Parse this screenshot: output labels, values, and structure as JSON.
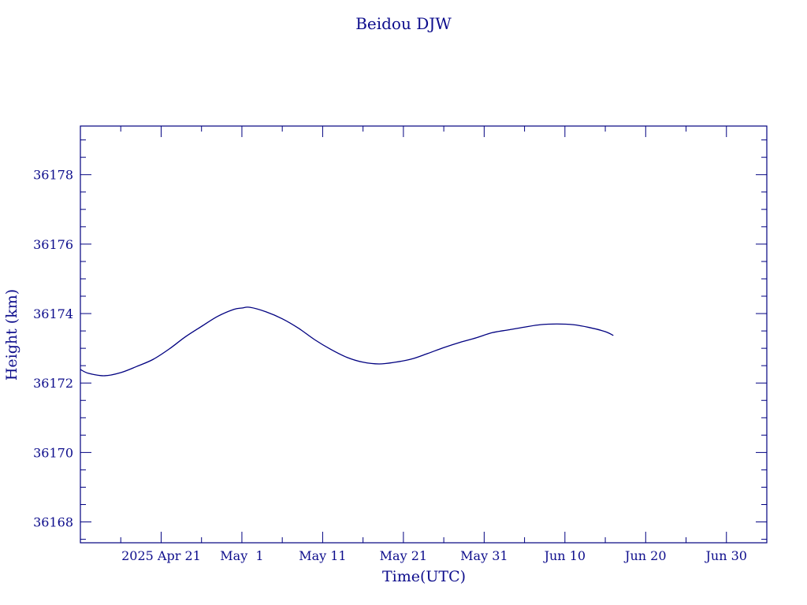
{
  "chart_data": {
    "type": "line",
    "title": "Beidou DJW",
    "xlabel": "Time(UTC)",
    "ylabel": "Height (km)",
    "colors": {
      "axis": "#000080",
      "text": "#0d0d8c",
      "line": "#000080"
    },
    "grid": false,
    "legend": "none",
    "x_range": [
      "2025-04-11",
      "2025-07-05"
    ],
    "y_range": [
      36167.4,
      36179.4
    ],
    "x_major_ticks": [
      {
        "date": "2025-04-21",
        "label": "2025 Apr 21"
      },
      {
        "date": "2025-05-01",
        "label": "May  1"
      },
      {
        "date": "2025-05-11",
        "label": "May 11"
      },
      {
        "date": "2025-05-21",
        "label": "May 21"
      },
      {
        "date": "2025-05-31",
        "label": "May 31"
      },
      {
        "date": "2025-06-10",
        "label": "Jun 10"
      },
      {
        "date": "2025-06-20",
        "label": "Jun 20"
      },
      {
        "date": "2025-06-30",
        "label": "Jun 30"
      }
    ],
    "y_major_ticks": [
      {
        "value": 36168,
        "label": "36168"
      },
      {
        "value": 36170,
        "label": "36170"
      },
      {
        "value": 36172,
        "label": "36172"
      },
      {
        "value": 36174,
        "label": "36174"
      },
      {
        "value": 36176,
        "label": "36176"
      },
      {
        "value": 36178,
        "label": "36178"
      }
    ],
    "series": [
      {
        "x": [
          "2025-04-11",
          "2025-04-12",
          "2025-04-14",
          "2025-04-16",
          "2025-04-18",
          "2025-04-20",
          "2025-04-22",
          "2025-04-24",
          "2025-04-26",
          "2025-04-28",
          "2025-04-30",
          "2025-05-01",
          "2025-05-02",
          "2025-05-04",
          "2025-05-06",
          "2025-05-08",
          "2025-05-10",
          "2025-05-12",
          "2025-05-14",
          "2025-05-16",
          "2025-05-18",
          "2025-05-20",
          "2025-05-22",
          "2025-05-24",
          "2025-05-26",
          "2025-05-28",
          "2025-05-30",
          "2025-06-01",
          "2025-06-03",
          "2025-06-05",
          "2025-06-07",
          "2025-06-09",
          "2025-06-11",
          "2025-06-13",
          "2025-06-15",
          "2025-06-16"
        ],
        "y": [
          36172.39,
          36172.28,
          36172.21,
          36172.3,
          36172.48,
          36172.68,
          36172.98,
          36173.33,
          36173.63,
          36173.92,
          36174.12,
          36174.16,
          36174.18,
          36174.05,
          36173.85,
          36173.58,
          36173.25,
          36172.97,
          36172.74,
          36172.6,
          36172.55,
          36172.6,
          36172.69,
          36172.85,
          36173.02,
          36173.17,
          36173.3,
          36173.45,
          36173.53,
          36173.61,
          36173.68,
          36173.7,
          36173.68,
          36173.6,
          36173.48,
          36173.37
        ]
      }
    ]
  }
}
